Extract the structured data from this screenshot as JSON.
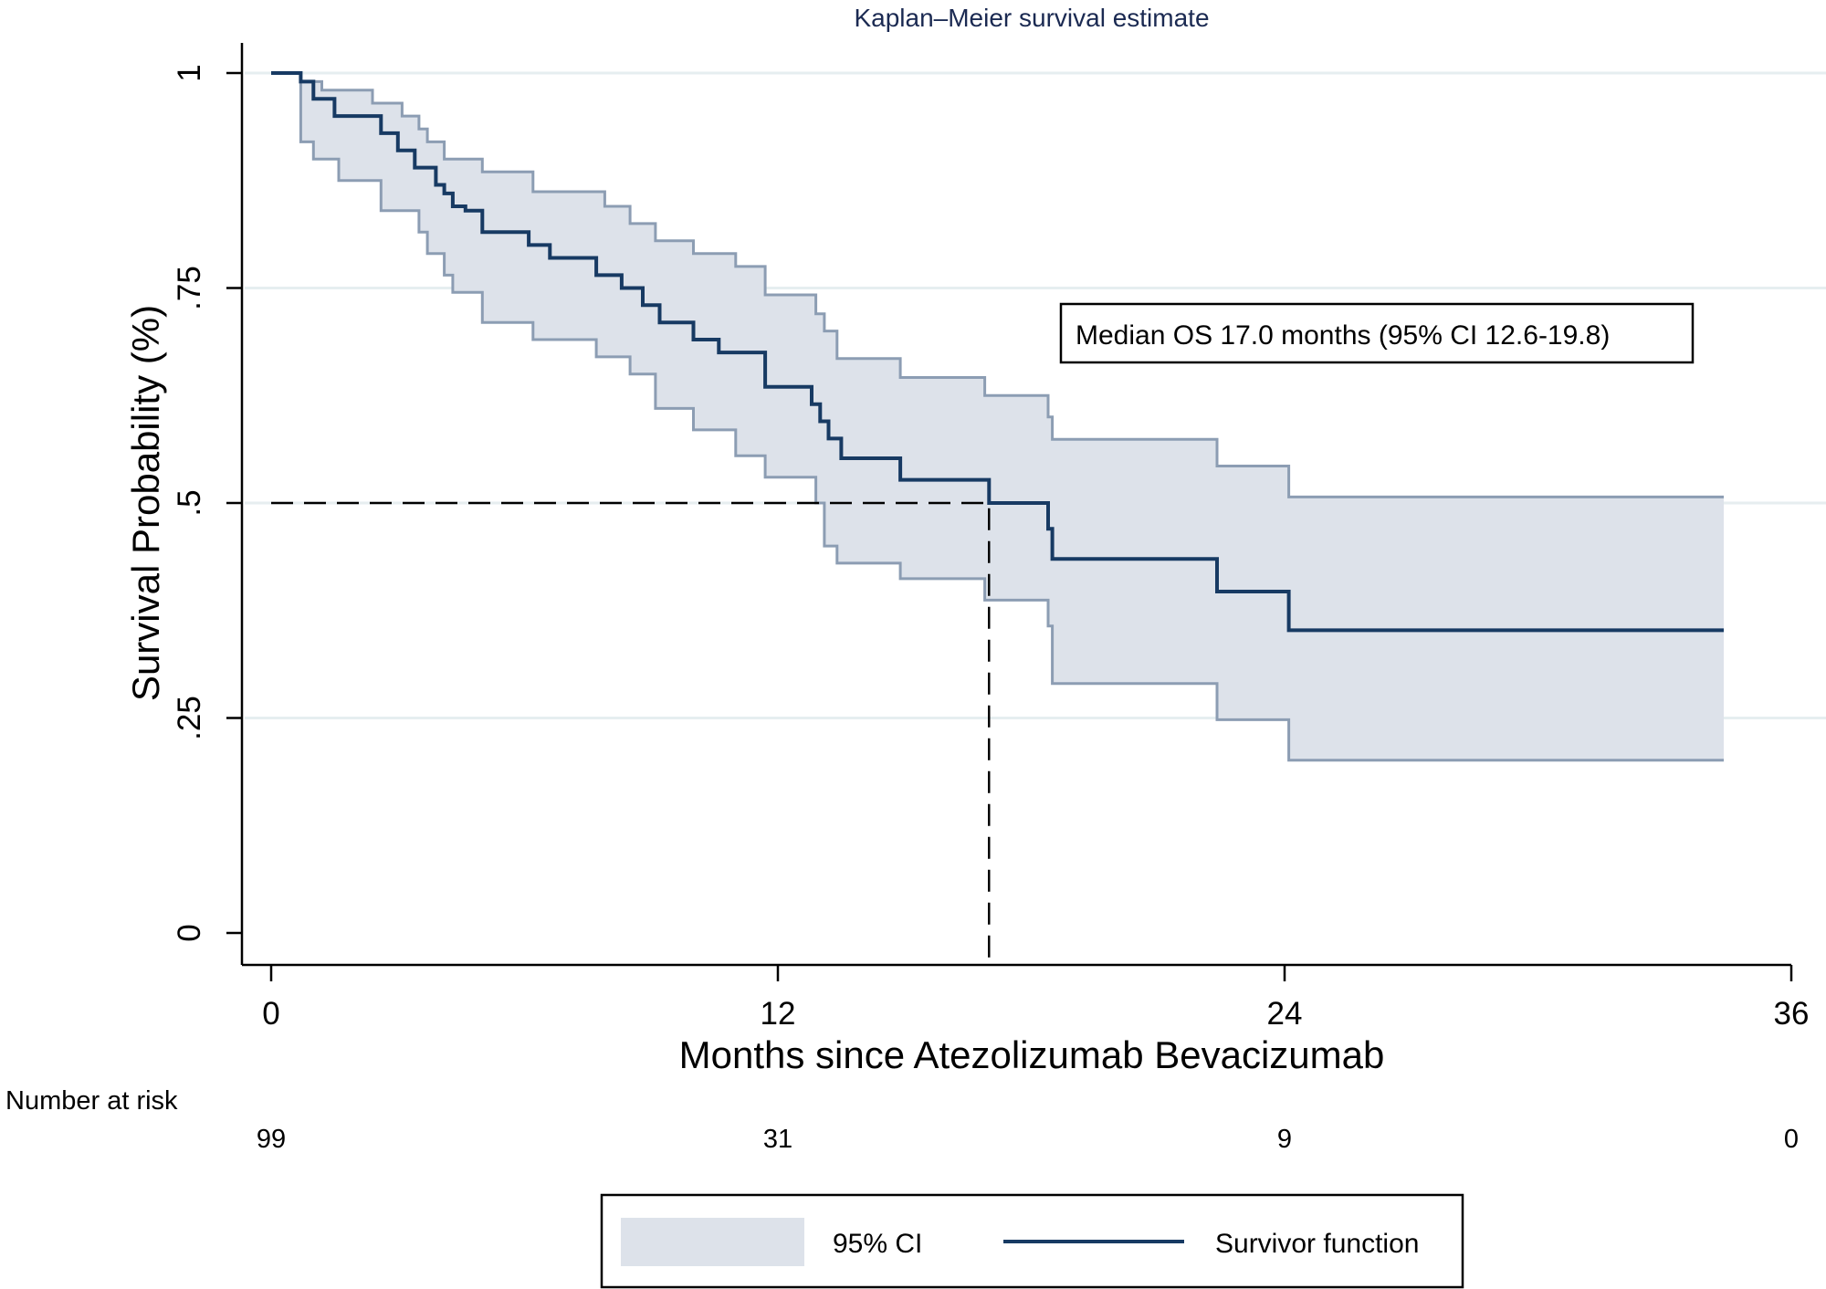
{
  "chart_data": {
    "type": "line",
    "title": "Kaplan–Meier survival estimate",
    "xlabel": "Months since Atezolizumab Bevacizumab",
    "ylabel": "Survival Probability (%)",
    "xlim": [
      0,
      36
    ],
    "ylim": [
      0,
      1
    ],
    "x_ticks": [
      0,
      12,
      24,
      36
    ],
    "x_tick_labels": [
      "0",
      "12",
      "24",
      "36"
    ],
    "y_ticks": [
      0,
      0.25,
      0.5,
      0.75,
      1
    ],
    "y_tick_labels": [
      "0",
      ".25",
      ".5",
      ".75",
      "1"
    ],
    "grid": "horizontal",
    "annotation": "Median OS 17.0 months (95% CI 12.6-19.8)",
    "median_reference": {
      "x": 17.0,
      "y": 0.5
    },
    "number_at_risk": {
      "label": "Number at risk",
      "times": [
        0,
        12,
        24,
        36
      ],
      "counts": [
        "99",
        "31",
        "9",
        "0"
      ]
    },
    "series": [
      {
        "name": "Survivor function",
        "color": "#173a63",
        "x": [
          0,
          0.7,
          0.7,
          1.0,
          1.0,
          1.5,
          1.5,
          2.6,
          2.6,
          3.0,
          3.0,
          3.4,
          3.4,
          3.9,
          3.9,
          4.1,
          4.1,
          4.3,
          4.3,
          4.6,
          4.6,
          5.0,
          5.0,
          5.8,
          5.8,
          6.1,
          6.1,
          6.6,
          6.6,
          7.7,
          7.7,
          8.3,
          8.3,
          8.8,
          8.8,
          9.2,
          9.2,
          10.0,
          10.0,
          10.6,
          10.6,
          11.4,
          11.4,
          11.7,
          11.7,
          12.8,
          12.8,
          13.0,
          13.0,
          13.2,
          13.2,
          13.5,
          13.5,
          14.9,
          14.9,
          17.0,
          17.0,
          18.4,
          18.4,
          18.5,
          18.5,
          22.4,
          22.4,
          24.1,
          24.1,
          34.4
        ],
        "y": [
          1,
          1,
          0.99,
          0.99,
          0.97,
          0.97,
          0.95,
          0.95,
          0.93,
          0.93,
          0.91,
          0.91,
          0.89,
          0.89,
          0.87,
          0.87,
          0.86,
          0.86,
          0.845,
          0.845,
          0.84,
          0.84,
          0.815,
          0.815,
          0.815,
          0.815,
          0.8,
          0.8,
          0.785,
          0.785,
          0.765,
          0.765,
          0.75,
          0.75,
          0.73,
          0.73,
          0.71,
          0.71,
          0.69,
          0.69,
          0.675,
          0.675,
          0.675,
          0.675,
          0.635,
          0.635,
          0.615,
          0.615,
          0.595,
          0.595,
          0.575,
          0.575,
          0.552,
          0.552,
          0.527,
          0.527,
          0.5,
          0.5,
          0.47,
          0.47,
          0.435,
          0.435,
          0.397,
          0.397,
          0.352,
          0.352
        ]
      },
      {
        "name": "95% CI",
        "color": "#dde2ea",
        "line_color": "#8c9db3",
        "upper_x": [
          0.7,
          0.7,
          1.2,
          1.2,
          2.4,
          2.4,
          3.1,
          3.1,
          3.5,
          3.5,
          3.7,
          3.7,
          4.1,
          4.1,
          4.3,
          4.3,
          5.0,
          5.0,
          6.2,
          6.2,
          6.6,
          6.6,
          7.9,
          7.9,
          8.5,
          8.5,
          9.1,
          9.1,
          10.0,
          10.0,
          11.0,
          11.0,
          11.7,
          11.7,
          12.9,
          12.9,
          13.1,
          13.1,
          13.4,
          13.4,
          14.9,
          14.9,
          16.9,
          16.9,
          18.4,
          18.4,
          18.5,
          18.5,
          22.4,
          22.4,
          24.1,
          24.1,
          34.4
        ],
        "upper_y": [
          1,
          0.99,
          0.99,
          0.98,
          0.98,
          0.965,
          0.965,
          0.95,
          0.95,
          0.935,
          0.935,
          0.92,
          0.92,
          0.9,
          0.9,
          0.9,
          0.9,
          0.885,
          0.885,
          0.862,
          0.862,
          0.862,
          0.862,
          0.845,
          0.845,
          0.825,
          0.825,
          0.805,
          0.805,
          0.79,
          0.79,
          0.775,
          0.775,
          0.742,
          0.742,
          0.72,
          0.72,
          0.7,
          0.7,
          0.668,
          0.668,
          0.646,
          0.646,
          0.625,
          0.625,
          0.6,
          0.6,
          0.574,
          0.574,
          0.543,
          0.543,
          0.507,
          0.507
        ],
        "lower_x": [
          0.7,
          0.7,
          1.0,
          1.0,
          1.6,
          1.6,
          2.6,
          2.6,
          3.5,
          3.5,
          3.7,
          3.7,
          4.1,
          4.1,
          4.3,
          4.3,
          5.0,
          5.0,
          6.2,
          6.2,
          7.7,
          7.7,
          8.5,
          8.5,
          9.1,
          9.1,
          10.0,
          10.0,
          11.0,
          11.0,
          11.7,
          11.7,
          12.9,
          12.9,
          13.1,
          13.1,
          13.4,
          13.4,
          14.9,
          14.9,
          16.9,
          16.9,
          18.4,
          18.4,
          18.5,
          18.5,
          22.4,
          22.4,
          24.1,
          24.1,
          34.4
        ],
        "lower_y": [
          1,
          0.92,
          0.92,
          0.9,
          0.9,
          0.875,
          0.875,
          0.84,
          0.84,
          0.815,
          0.815,
          0.79,
          0.79,
          0.765,
          0.765,
          0.745,
          0.745,
          0.71,
          0.71,
          0.69,
          0.69,
          0.67,
          0.67,
          0.65,
          0.65,
          0.61,
          0.61,
          0.585,
          0.585,
          0.555,
          0.555,
          0.53,
          0.53,
          0.5,
          0.5,
          0.45,
          0.45,
          0.43,
          0.43,
          0.412,
          0.412,
          0.387,
          0.387,
          0.357,
          0.357,
          0.29,
          0.29,
          0.248,
          0.248,
          0.201,
          0.201
        ]
      }
    ]
  },
  "legend": {
    "ci_label": "95% CI",
    "line_label": "Survivor function"
  }
}
